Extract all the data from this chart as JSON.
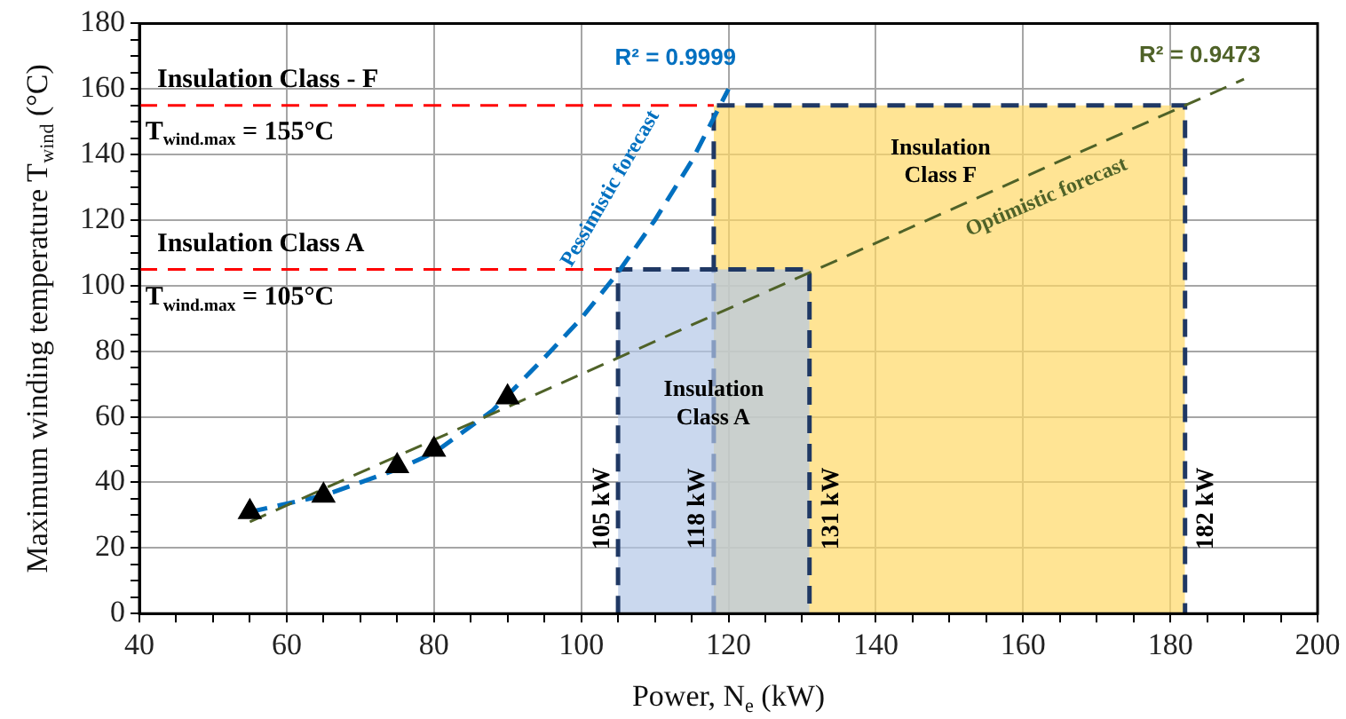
{
  "chart_data": {
    "type": "scatter",
    "xlabel": "Power, N$_{e}$ (kW)",
    "ylabel": "Maximum winding temperature T$_{wind}$ (°C)",
    "xlim": [
      40,
      200
    ],
    "ylim": [
      0,
      180
    ],
    "xticks": [
      40,
      {
        "value": 45,
        "label": null
      },
      {
        "value": 50,
        "label": null
      },
      {
        "value": 55,
        "label": null
      },
      60,
      {
        "value": 65,
        "label": null
      },
      {
        "value": 70,
        "label": null
      },
      {
        "value": 75,
        "label": null
      },
      80,
      {
        "value": 85,
        "label": null
      },
      {
        "value": 90,
        "label": null
      },
      {
        "value": 95,
        "label": null
      },
      100,
      {
        "value": 105,
        "label": null
      },
      {
        "value": 110,
        "label": null
      },
      {
        "value": 115,
        "label": null
      },
      120,
      {
        "value": 125,
        "label": null
      },
      {
        "value": 130,
        "label": null
      },
      {
        "value": 135,
        "label": null
      },
      140,
      {
        "value": 145,
        "label": null
      },
      {
        "value": 150,
        "label": null
      },
      {
        "value": 155,
        "label": null
      },
      160,
      {
        "value": 165,
        "label": null
      },
      {
        "value": 170,
        "label": null
      },
      {
        "value": 175,
        "label": null
      },
      180,
      {
        "value": 185,
        "label": null
      },
      {
        "value": 190,
        "label": null
      },
      {
        "value": 195,
        "label": null
      },
      200
    ],
    "yticks": [
      0,
      {
        "value": 5,
        "label": null
      },
      {
        "value": 10,
        "label": null
      },
      {
        "value": 15,
        "label": null
      },
      20,
      {
        "value": 25,
        "label": null
      },
      {
        "value": 30,
        "label": null
      },
      {
        "value": 35,
        "label": null
      },
      40,
      {
        "value": 45,
        "label": null
      },
      {
        "value": 50,
        "label": null
      },
      {
        "value": 55,
        "label": null
      },
      60,
      {
        "value": 65,
        "label": null
      },
      {
        "value": 70,
        "label": null
      },
      {
        "value": 75,
        "label": null
      },
      80,
      {
        "value": 85,
        "label": null
      },
      {
        "value": 90,
        "label": null
      },
      {
        "value": 95,
        "label": null
      },
      100,
      {
        "value": 105,
        "label": null
      },
      {
        "value": 110,
        "label": null
      },
      {
        "value": 115,
        "label": null
      },
      120,
      {
        "value": 125,
        "label": null
      },
      {
        "value": 130,
        "label": null
      },
      {
        "value": 135,
        "label": null
      },
      140,
      {
        "value": 145,
        "label": null
      },
      {
        "value": 150,
        "label": null
      },
      {
        "value": 155,
        "label": null
      },
      160,
      {
        "value": 165,
        "label": null
      },
      {
        "value": 170,
        "label": null
      },
      {
        "value": 175,
        "label": null
      },
      180
    ],
    "grid": true,
    "legend": false,
    "series": [
      {
        "type": "area",
        "color": "#b4c7e7",
        "line_style": "dashed",
        "x": [
          105,
          105,
          131,
          131
        ],
        "values": [
          0,
          105,
          105,
          0
        ]
      },
      {
        "type": "area",
        "color": "#ffd966",
        "line_style": "dashed",
        "x": [
          118,
          118,
          182,
          182
        ],
        "values": [
          0,
          155,
          155,
          0
        ]
      },
      {
        "type": "line",
        "color": "#4f6228",
        "line_style": "dashed",
        "marker": "none",
        "x": [
          55,
          190
        ],
        "values": [
          28,
          163
        ]
      },
      {
        "type": "line",
        "color": "#0070c0",
        "line_style": "dashed",
        "marker": "none",
        "x": [
          55,
          65,
          75,
          80,
          88,
          95,
          100,
          105,
          110,
          115,
          120
        ],
        "values": [
          31,
          36,
          44,
          49,
          62,
          78,
          90,
          104,
          120,
          138,
          160
        ]
      },
      {
        "type": "scatter",
        "color": "#000000",
        "marker": "triangle",
        "x": [
          55,
          65,
          75,
          80,
          90
        ],
        "values": [
          31,
          36,
          45,
          50,
          66
        ]
      }
    ],
    "ref_lines": [
      {
        "axis": "y",
        "value": 155,
        "label": "Insulation Class - F",
        "color": "#ff0000",
        "line_style": "dashed"
      },
      {
        "axis": "y",
        "value": 105,
        "label": "Insulation Class A",
        "color": "#ff0000",
        "line_style": "dashed"
      }
    ],
    "annotations": [
      "T$_{wind.max}$ = 155°C",
      "T$_{wind.max}$ = 105°C",
      "R² = 0.9999",
      "R² = 0.9473",
      "Pessimistic forecast",
      "Optimistic forecast",
      "Insulation Class A",
      "Insulation Class F",
      "105 kW",
      "118 kW",
      "131 kW",
      "182 kW"
    ]
  }
}
